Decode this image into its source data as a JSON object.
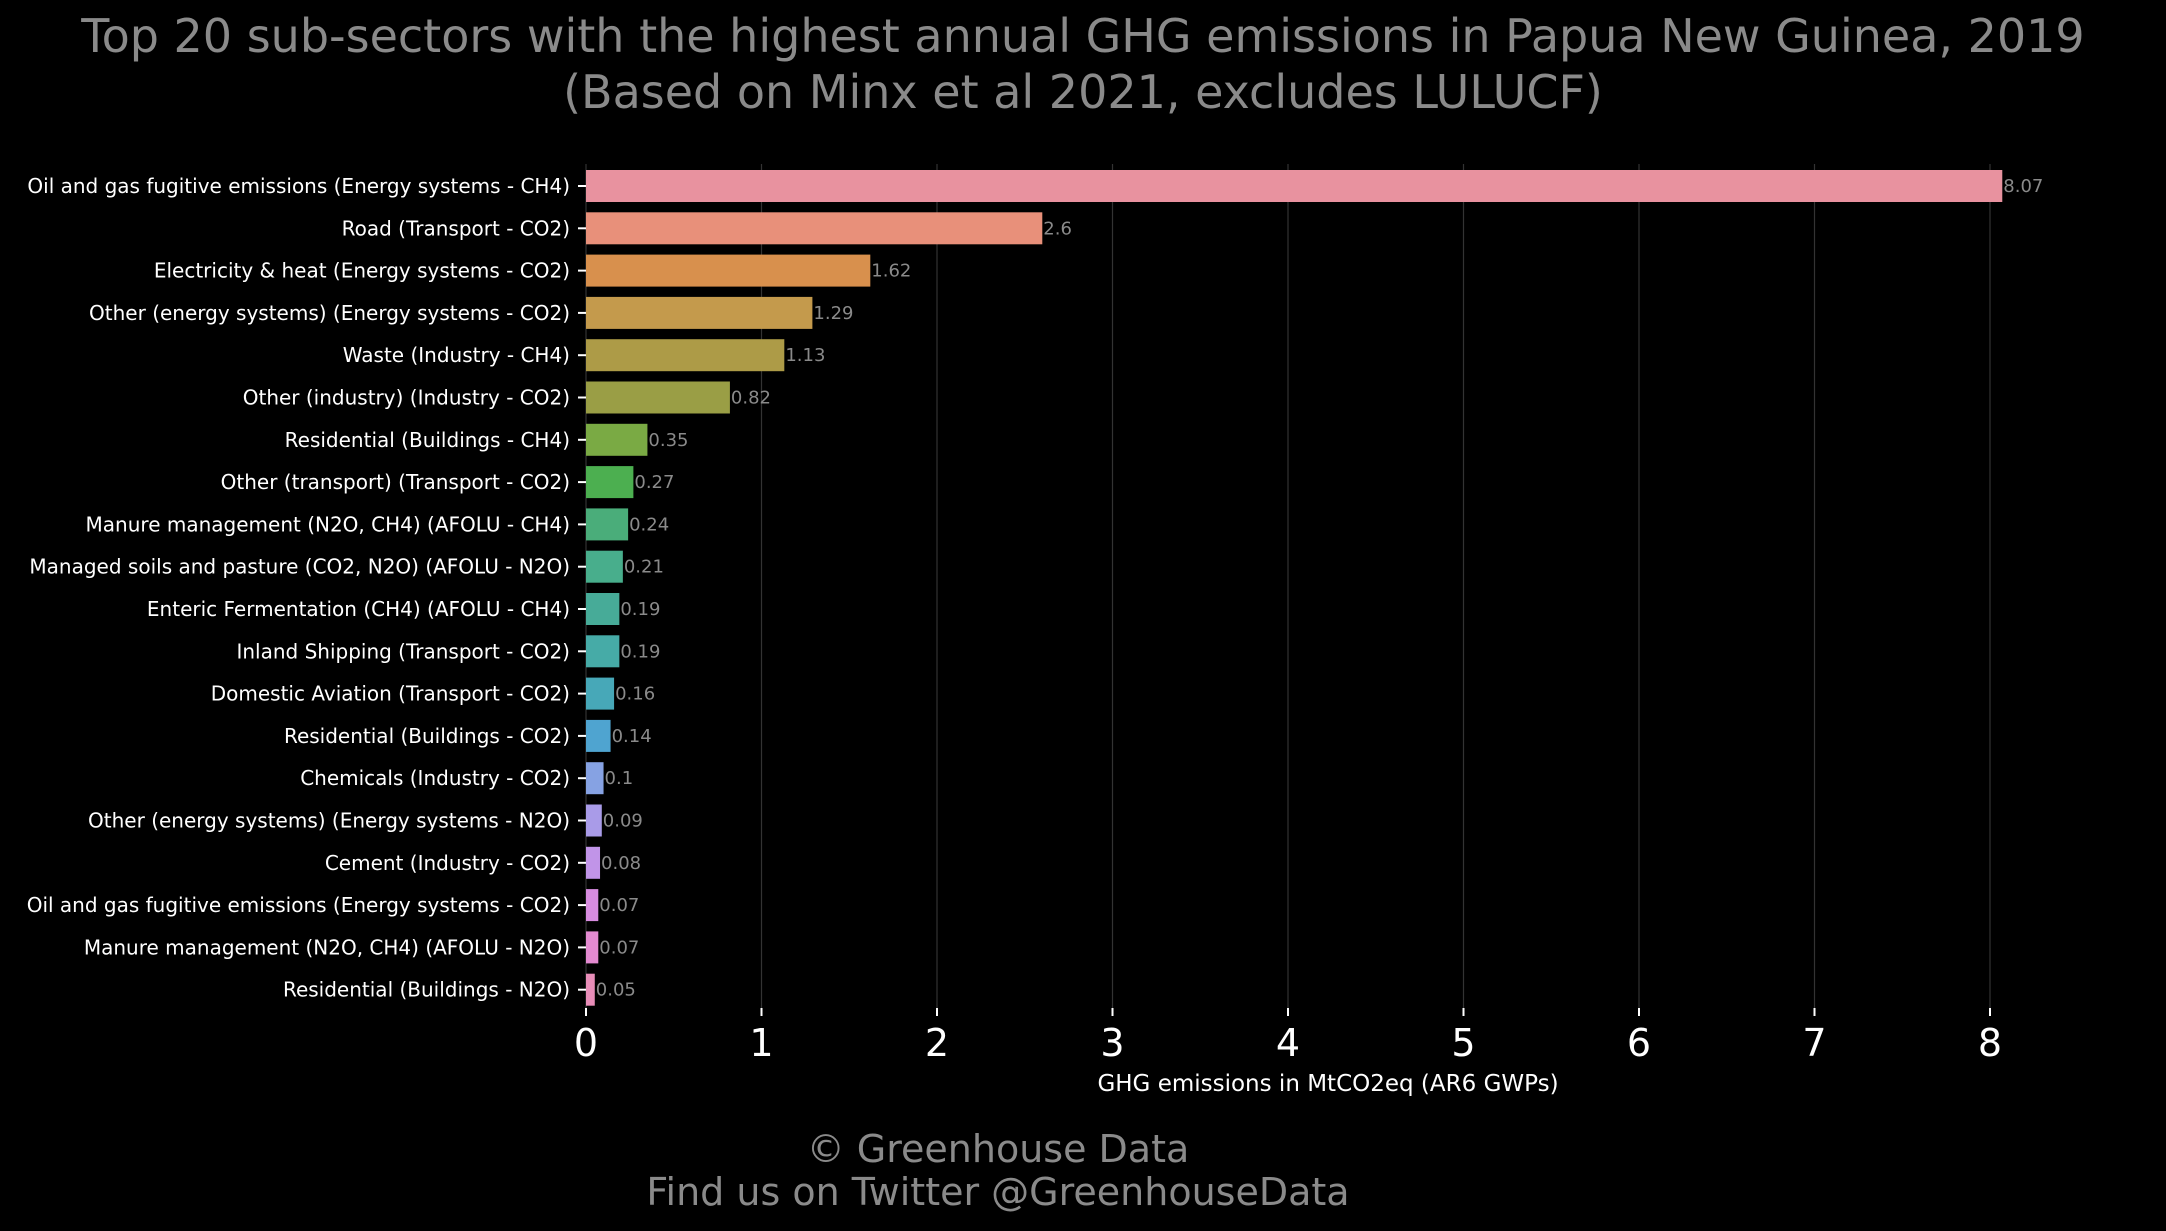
{
  "chart_data": {
    "type": "bar",
    "orientation": "horizontal",
    "title": "Top 20 sub-sectors with the highest annual GHG emissions in Papua New Guinea, 2019",
    "subtitle": "(Based on Minx et al 2021, excludes LULUCF)",
    "xlabel": "GHG emissions in MtCO2eq (AR6 GWPs)",
    "ylabel": "",
    "xlim": [
      0,
      8.3
    ],
    "xticks": [
      0,
      1,
      2,
      3,
      4,
      5,
      6,
      7,
      8
    ],
    "grid": "vertical",
    "categories": [
      "Oil and gas fugitive emissions (Energy systems - CH4)",
      "Road (Transport - CO2)",
      "Electricity & heat (Energy systems - CO2)",
      "Other (energy systems) (Energy systems - CO2)",
      "Waste (Industry - CH4)",
      "Other (industry) (Industry - CO2)",
      "Residential (Buildings - CH4)",
      "Other (transport) (Transport - CO2)",
      "Manure management (N2O, CH4) (AFOLU - CH4)",
      "Managed soils and pasture (CO2, N2O) (AFOLU - N2O)",
      "Enteric Fermentation (CH4) (AFOLU - CH4)",
      "Inland Shipping (Transport - CO2)",
      "Domestic Aviation (Transport - CO2)",
      "Residential (Buildings - CO2)",
      "Chemicals (Industry - CO2)",
      "Other (energy systems) (Energy systems - N2O)",
      "Cement (Industry - CO2)",
      "Oil and gas fugitive emissions (Energy systems - CO2)",
      "Manure management (N2O, CH4) (AFOLU - N2O)",
      "Residential (Buildings - N2O)"
    ],
    "values": [
      8.07,
      2.6,
      1.62,
      1.29,
      1.13,
      0.82,
      0.35,
      0.27,
      0.24,
      0.21,
      0.19,
      0.19,
      0.16,
      0.14,
      0.1,
      0.09,
      0.08,
      0.07,
      0.07,
      0.05
    ],
    "value_labels": [
      "8.07",
      "2.6",
      "1.62",
      "1.29",
      "1.13",
      "0.82",
      "0.35",
      "0.27",
      "0.24",
      "0.21",
      "0.19",
      "0.19",
      "0.16",
      "0.14",
      "0.1",
      "0.09",
      "0.08",
      "0.07",
      "0.07",
      "0.05"
    ],
    "colors": [
      "#e8929f",
      "#e8907a",
      "#d8904d",
      "#c49a4c",
      "#ad9b47",
      "#9a9e45",
      "#7aaa44",
      "#4caf50",
      "#4aad7a",
      "#48ae8c",
      "#47ab98",
      "#46aba7",
      "#47a8b8",
      "#4fa4d0",
      "#86a2e3",
      "#a99be8",
      "#c194e8",
      "#d88ce0",
      "#e38ad0",
      "#e88db8"
    ]
  },
  "credit": {
    "line1": "© Greenhouse Data",
    "line2": "Find us on Twitter @GreenhouseData"
  }
}
